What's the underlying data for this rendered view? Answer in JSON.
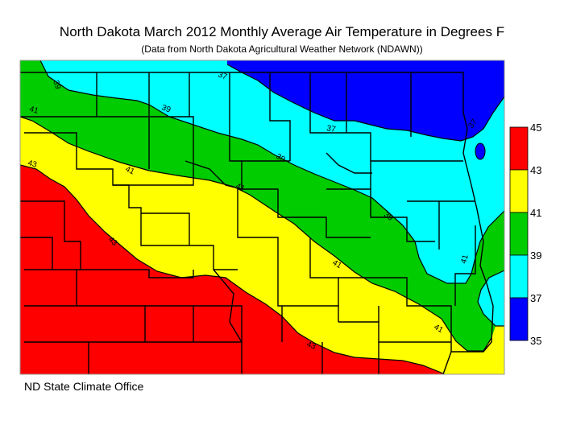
{
  "header": {
    "title": "North Dakota March 2012 Monthly Average Air Temperature in Degrees F",
    "subtitle": "(Data from North Dakota Agricultural Weather Network (NDAWN))"
  },
  "footer": {
    "credit": "ND State Climate Office"
  },
  "legend": {
    "bands": [
      {
        "from": 43,
        "to": 45,
        "color": "#ff0000"
      },
      {
        "from": 41,
        "to": 43,
        "color": "#ffff00"
      },
      {
        "from": 39,
        "to": 41,
        "color": "#00cc00"
      },
      {
        "from": 37,
        "to": 39,
        "color": "#00ffff"
      },
      {
        "from": 35,
        "to": 37,
        "color": "#0000ff"
      }
    ],
    "ticks": [
      "45",
      "43",
      "41",
      "39",
      "37",
      "35"
    ]
  },
  "contour_labels": [
    "39",
    "37",
    "41",
    "39",
    "43",
    "41",
    "37",
    "41",
    "39",
    "37",
    "39",
    "41",
    "43",
    "41",
    "41",
    "43"
  ]
}
